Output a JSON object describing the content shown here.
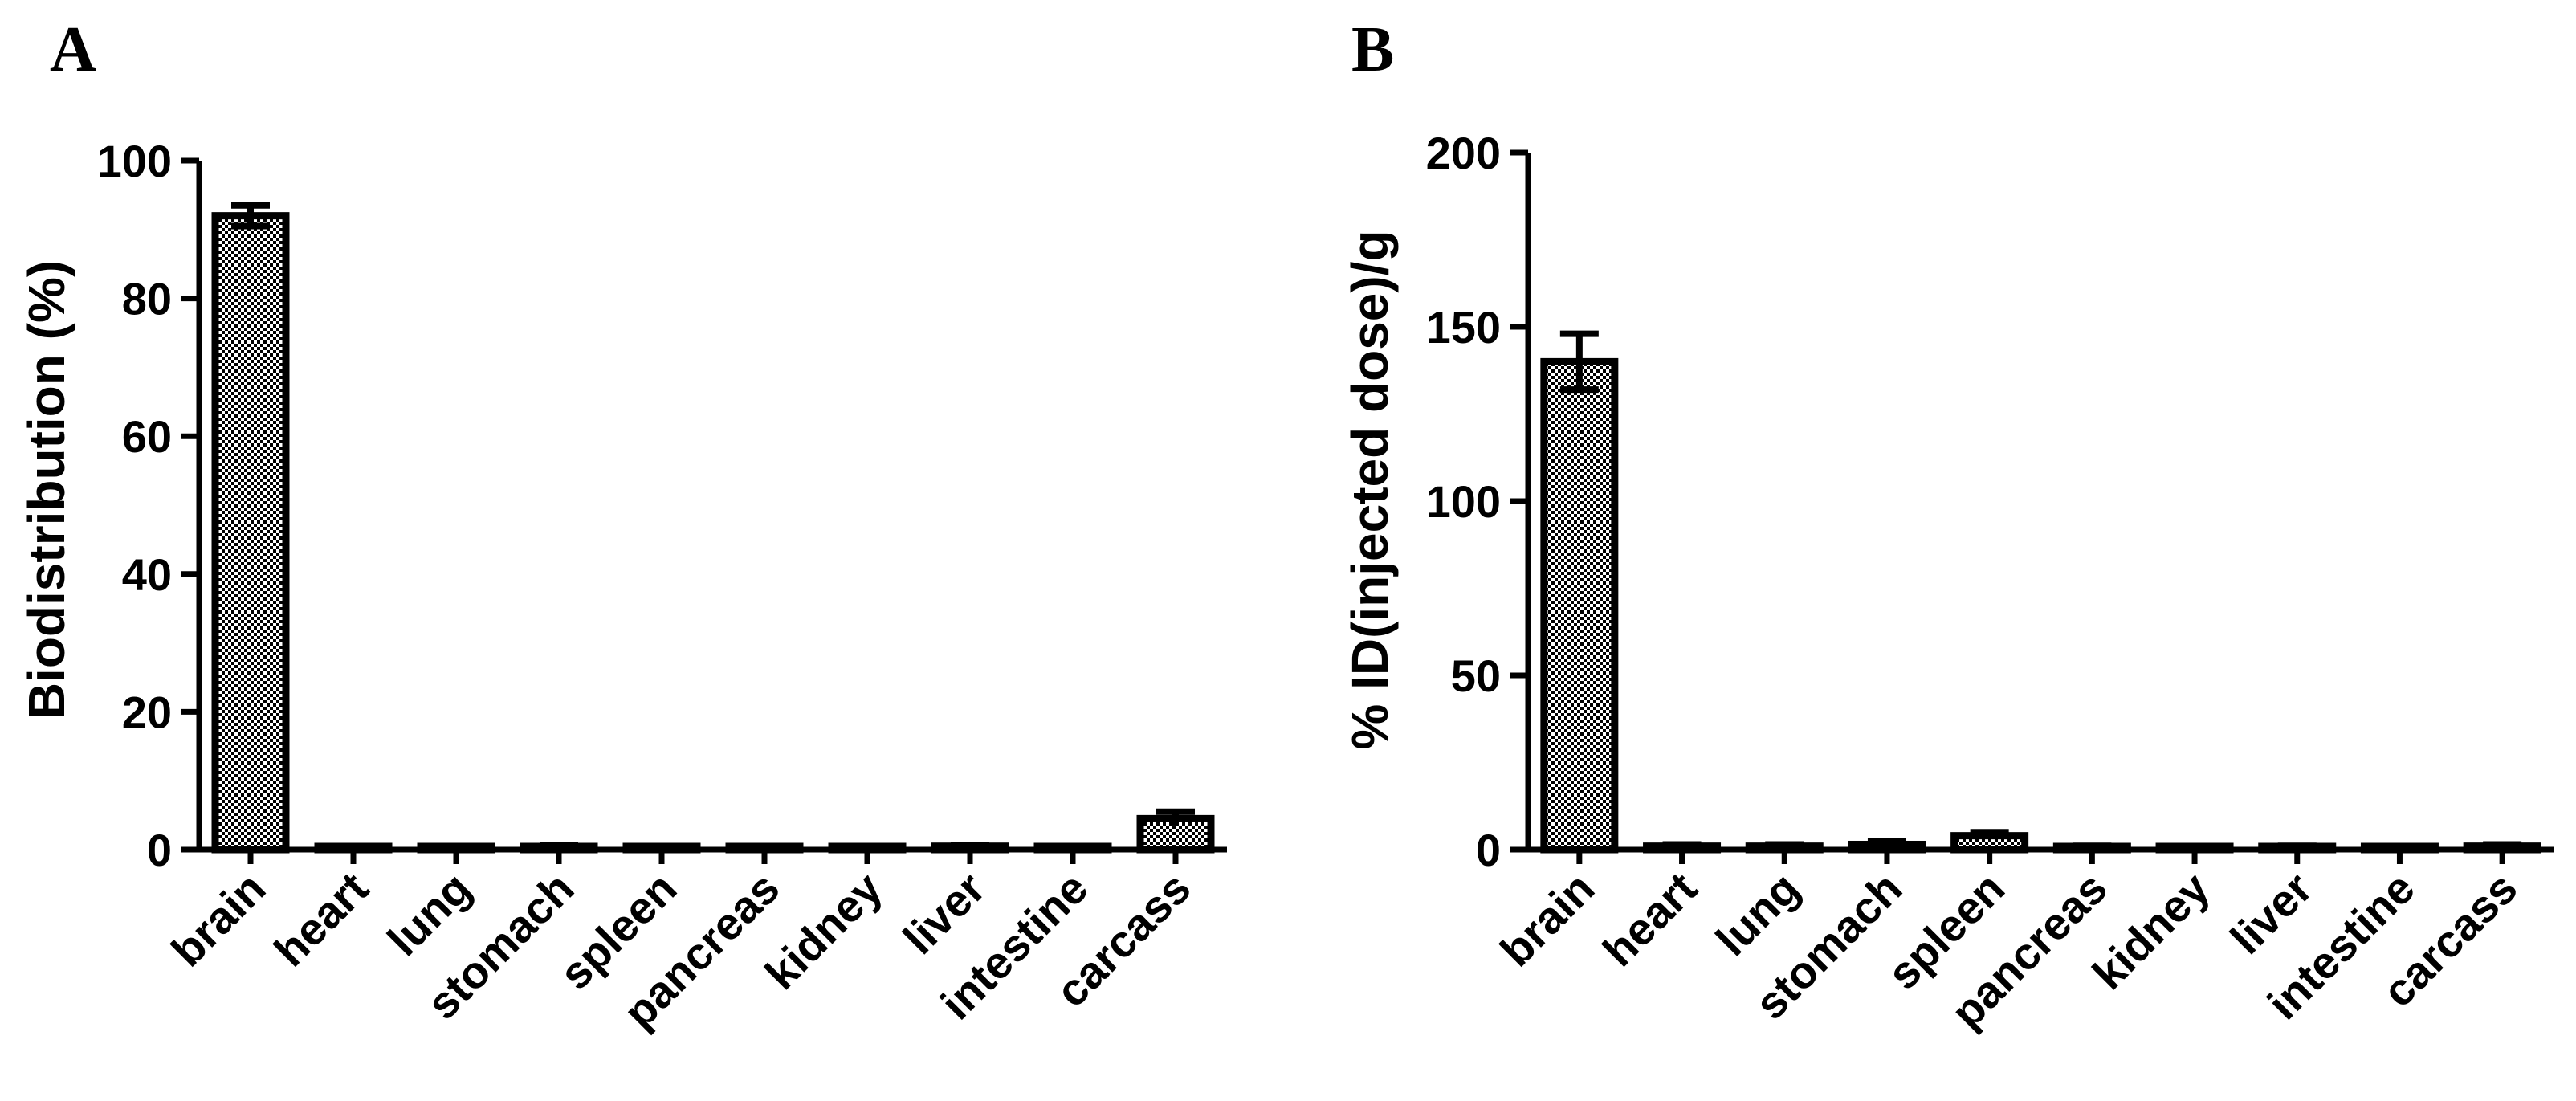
{
  "chart_data": [
    {
      "panel": "A",
      "type": "bar",
      "ylabel": "Biodistribution (%)",
      "xlabel": "",
      "ylim": [
        0,
        100
      ],
      "yticks": [
        0,
        20,
        40,
        60,
        80,
        100
      ],
      "categories": [
        "brain",
        "heart",
        "lung",
        "stomach",
        "spleen",
        "pancreas",
        "kidney",
        "liver",
        "intestine",
        "carcass"
      ],
      "values": [
        92,
        0.2,
        0.3,
        0.4,
        0.3,
        0.1,
        0.3,
        0.5,
        0.3,
        4.5
      ],
      "errors": [
        1.5,
        0.1,
        0.1,
        0.2,
        0.1,
        0.05,
        0.1,
        0.2,
        0.1,
        1.0
      ]
    },
    {
      "panel": "B",
      "type": "bar",
      "ylabel": "% ID(injected dose)/g",
      "xlabel": "",
      "ylim": [
        0,
        200
      ],
      "yticks": [
        0,
        50,
        100,
        150,
        200
      ],
      "categories": [
        "brain",
        "heart",
        "lung",
        "stomach",
        "spleen",
        "pancreas",
        "kidney",
        "liver",
        "intestine",
        "carcass"
      ],
      "values": [
        140,
        1.0,
        1.0,
        1.5,
        4.0,
        0.8,
        0.5,
        0.8,
        0.3,
        1.0
      ],
      "errors": [
        8,
        0.5,
        0.5,
        1.0,
        1.0,
        0.3,
        0.2,
        0.3,
        0.1,
        0.5
      ]
    }
  ]
}
